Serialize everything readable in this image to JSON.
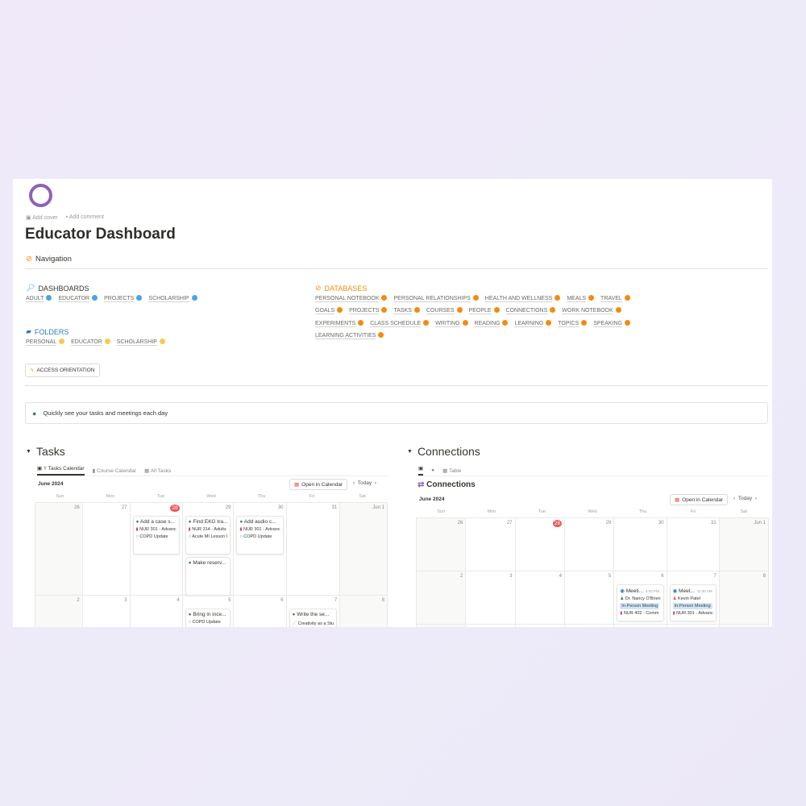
{
  "page": {
    "title": "Educator Dashboard",
    "add_cover": "Add cover",
    "add_comment": "Add comment",
    "navigation": "Navigation"
  },
  "dashboards": {
    "heading": "DASHBOARDS",
    "color": "#4aa3e8",
    "items": [
      "ADULT",
      "EDUCATOR",
      "PROJECTS",
      "SCHOLARSHIP"
    ]
  },
  "folders": {
    "heading": "FOLDERS",
    "color": "#fcc94a",
    "items": [
      "PERSONAL",
      "EDUCATOR",
      "SCHOLARSHIP"
    ]
  },
  "databases": {
    "heading": "DATABASES",
    "color": "#f28c0f",
    "items": [
      "PERSONAL NOTEBOOK",
      "PERSONAL RELATIONSHIPS",
      "HEALTH AND WELLNESS",
      "MEALS",
      "TRAVEL",
      "GOALS",
      "PROJECTS",
      "TASKS",
      "COURSES",
      "PEOPLE",
      "CONNECTIONS",
      "WORK NOTEBOOK",
      "EXPERIMENTS",
      "CLASS SCHEDULE",
      "WRITING",
      "READING",
      "LEARNING",
      "TOPICS",
      "SPEAKING",
      "LEARNING ACTIVITIES"
    ]
  },
  "access_button": "ACCESS ORIENTATION",
  "callout": "Quickly see your tasks and meetings each day",
  "weekdays": [
    "Sun",
    "Mon",
    "Tue",
    "Wed",
    "Thu",
    "Fri",
    "Sat"
  ],
  "tasks": {
    "heading": "Tasks",
    "tabs": [
      "Tasks Calendar",
      "Course Calendar",
      "All Tasks"
    ],
    "month": "June 2024",
    "open_calendar": "Open in Calendar",
    "today": "Today",
    "days": [
      {
        "n": "26"
      },
      {
        "n": "27"
      },
      {
        "n": "28",
        "today": true,
        "cards": [
          {
            "title": "Add a case s...",
            "rows": [
              "NUR 301 - Advanc",
              "COPD Update"
            ]
          }
        ]
      },
      {
        "n": "29",
        "cards": [
          {
            "title": "Find EKG tra...",
            "rows": [
              "NUR 314 - Adults",
              "Acute MI Lesson I"
            ]
          },
          {
            "title": "Make reserv...",
            "rows": []
          }
        ]
      },
      {
        "n": "30",
        "cards": [
          {
            "title": "Add audio c...",
            "rows": [
              "NUR 301 - Advanc",
              "COPD Update"
            ]
          }
        ]
      },
      {
        "n": "31"
      },
      {
        "n": "Jun 1"
      },
      {
        "n": "2"
      },
      {
        "n": "3"
      },
      {
        "n": "4"
      },
      {
        "n": "5",
        "cards": [
          {
            "title": "Bring in ince...",
            "rows": [
              "COPD Update"
            ]
          }
        ]
      },
      {
        "n": "6"
      },
      {
        "n": "7",
        "cards": [
          {
            "title": "Write the se...",
            "rows": [
              "Creativity as a Stu"
            ]
          }
        ]
      },
      {
        "n": "8"
      }
    ]
  },
  "connections": {
    "heading": "Connections",
    "tabs": [
      "",
      "",
      "Table"
    ],
    "title": "Connections",
    "month": "June 2024",
    "open_calendar": "Open in Calendar",
    "today": "Today",
    "days": [
      {
        "n": "26"
      },
      {
        "n": "27"
      },
      {
        "n": "28",
        "today": true
      },
      {
        "n": "29"
      },
      {
        "n": "30"
      },
      {
        "n": "31"
      },
      {
        "n": "Jun 1"
      },
      {
        "n": "2"
      },
      {
        "n": "3"
      },
      {
        "n": "4"
      },
      {
        "n": "5"
      },
      {
        "n": "6",
        "cards": [
          {
            "title": "Meeti...",
            "time": "4:00 PM",
            "person": "Dr. Nancy O'Brien",
            "tag": "In-Person Meeting",
            "course": "NUR 402 - Comm"
          }
        ]
      },
      {
        "n": "7",
        "cards": [
          {
            "title": "Meet...",
            "time": "11:30 AM",
            "person": "Kevin Patel",
            "tag": "In-Person Meeting",
            "course": "NUR 301 - Advanc"
          }
        ]
      },
      {
        "n": "8"
      }
    ]
  }
}
